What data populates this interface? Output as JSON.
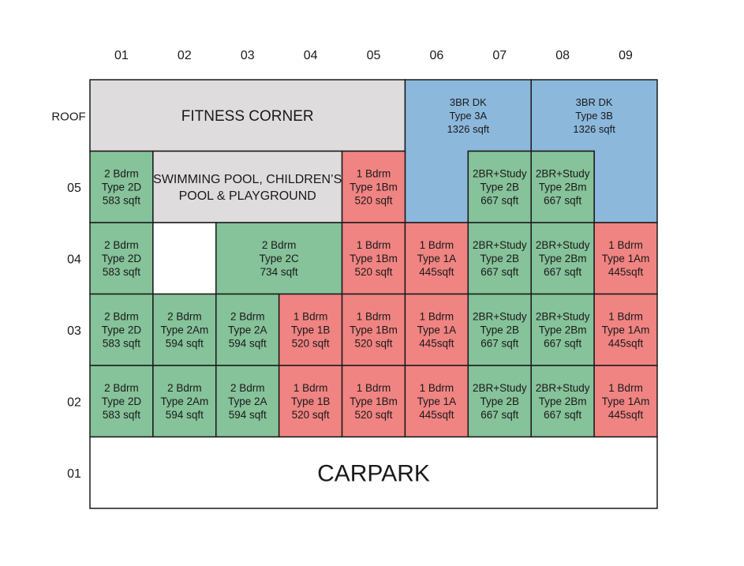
{
  "stacks": [
    "01",
    "02",
    "03",
    "04",
    "05",
    "06",
    "07",
    "08",
    "09"
  ],
  "floors": [
    "ROOF",
    "05",
    "04",
    "03",
    "02",
    "01"
  ],
  "colors": {
    "two_bedroom": "#86c29a",
    "one_bedroom": "#f08482",
    "three_bedroom": "#8cb8dc",
    "facility": "#dfdcdd",
    "empty": "#ffffff",
    "border": "#1a1a1a"
  },
  "cells": [
    {
      "kind": "facility",
      "size": "l",
      "parts": [
        {
          "floor": "ROOF",
          "stacks": [
            "01",
            "02",
            "03",
            "04",
            "05"
          ]
        }
      ],
      "lines": [
        "FITNESS CORNER"
      ]
    },
    {
      "kind": "three_bedroom",
      "parts": [
        {
          "floor": "ROOF",
          "stacks": [
            "06",
            "07"
          ]
        },
        {
          "floor": "05",
          "stacks": [
            "06"
          ]
        }
      ],
      "lines": [
        "3BR DK",
        "Type 3A",
        "1326 sqft"
      ]
    },
    {
      "kind": "three_bedroom",
      "parts": [
        {
          "floor": "ROOF",
          "stacks": [
            "08",
            "09"
          ]
        },
        {
          "floor": "05",
          "stacks": [
            "09"
          ]
        }
      ],
      "lines": [
        "3BR DK",
        "Type 3B",
        "1326 sqft"
      ]
    },
    {
      "kind": "two_bedroom",
      "parts": [
        {
          "floor": "05",
          "stacks": [
            "01"
          ]
        }
      ],
      "lines": [
        "2 Bdrm",
        "Type 2D",
        "583 sqft"
      ]
    },
    {
      "kind": "facility",
      "size": "m",
      "parts": [
        {
          "floor": "05",
          "stacks": [
            "02",
            "03",
            "04"
          ]
        }
      ],
      "lines": [
        "SWIMMING POOL, CHILDREN’S",
        "POOL & PLAYGROUND"
      ]
    },
    {
      "kind": "one_bedroom",
      "parts": [
        {
          "floor": "05",
          "stacks": [
            "05"
          ]
        }
      ],
      "lines": [
        "1 Bdrm",
        "Type 1Bm",
        "520 sqft"
      ]
    },
    {
      "kind": "two_bedroom",
      "parts": [
        {
          "floor": "05",
          "stacks": [
            "07"
          ]
        }
      ],
      "lines": [
        "2BR+Study",
        "Type 2B",
        "667 sqft"
      ]
    },
    {
      "kind": "two_bedroom",
      "parts": [
        {
          "floor": "05",
          "stacks": [
            "08"
          ]
        }
      ],
      "lines": [
        "2BR+Study",
        "Type 2Bm",
        "667 sqft"
      ]
    },
    {
      "kind": "two_bedroom",
      "parts": [
        {
          "floor": "04",
          "stacks": [
            "01"
          ]
        }
      ],
      "lines": [
        "2 Bdrm",
        "Type 2D",
        "583 sqft"
      ]
    },
    {
      "kind": "empty",
      "parts": [
        {
          "floor": "04",
          "stacks": [
            "02"
          ]
        }
      ],
      "lines": []
    },
    {
      "kind": "two_bedroom",
      "parts": [
        {
          "floor": "04",
          "stacks": [
            "03",
            "04"
          ]
        }
      ],
      "lines": [
        "2 Bdrm",
        "Type 2C",
        "734 sqft"
      ]
    },
    {
      "kind": "one_bedroom",
      "parts": [
        {
          "floor": "04",
          "stacks": [
            "05"
          ]
        }
      ],
      "lines": [
        "1 Bdrm",
        "Type 1Bm",
        "520 sqft"
      ]
    },
    {
      "kind": "one_bedroom",
      "parts": [
        {
          "floor": "04",
          "stacks": [
            "06"
          ]
        }
      ],
      "lines": [
        "1 Bdrm",
        "Type 1A",
        "445sqft"
      ]
    },
    {
      "kind": "two_bedroom",
      "parts": [
        {
          "floor": "04",
          "stacks": [
            "07"
          ]
        }
      ],
      "lines": [
        "2BR+Study",
        "Type 2B",
        "667 sqft"
      ]
    },
    {
      "kind": "two_bedroom",
      "parts": [
        {
          "floor": "04",
          "stacks": [
            "08"
          ]
        }
      ],
      "lines": [
        "2BR+Study",
        "Type 2Bm",
        "667 sqft"
      ]
    },
    {
      "kind": "one_bedroom",
      "parts": [
        {
          "floor": "04",
          "stacks": [
            "09"
          ]
        }
      ],
      "lines": [
        "1 Bdrm",
        "Type 1Am",
        "445sqft"
      ]
    },
    {
      "kind": "two_bedroom",
      "parts": [
        {
          "floor": "03",
          "stacks": [
            "01"
          ]
        }
      ],
      "lines": [
        "2 Bdrm",
        "Type 2D",
        "583 sqft"
      ]
    },
    {
      "kind": "two_bedroom",
      "parts": [
        {
          "floor": "03",
          "stacks": [
            "02"
          ]
        }
      ],
      "lines": [
        "2 Bdrm",
        "Type 2Am",
        "594 sqft"
      ]
    },
    {
      "kind": "two_bedroom",
      "parts": [
        {
          "floor": "03",
          "stacks": [
            "03"
          ]
        }
      ],
      "lines": [
        "2 Bdrm",
        "Type 2A",
        "594 sqft"
      ]
    },
    {
      "kind": "one_bedroom",
      "parts": [
        {
          "floor": "03",
          "stacks": [
            "04"
          ]
        }
      ],
      "lines": [
        "1 Bdrm",
        "Type 1B",
        "520 sqft"
      ]
    },
    {
      "kind": "one_bedroom",
      "parts": [
        {
          "floor": "03",
          "stacks": [
            "05"
          ]
        }
      ],
      "lines": [
        "1 Bdrm",
        "Type 1Bm",
        "520 sqft"
      ]
    },
    {
      "kind": "one_bedroom",
      "parts": [
        {
          "floor": "03",
          "stacks": [
            "06"
          ]
        }
      ],
      "lines": [
        "1 Bdrm",
        "Type 1A",
        "445sqft"
      ]
    },
    {
      "kind": "two_bedroom",
      "parts": [
        {
          "floor": "03",
          "stacks": [
            "07"
          ]
        }
      ],
      "lines": [
        "2BR+Study",
        "Type 2B",
        "667 sqft"
      ]
    },
    {
      "kind": "two_bedroom",
      "parts": [
        {
          "floor": "03",
          "stacks": [
            "08"
          ]
        }
      ],
      "lines": [
        "2BR+Study",
        "Type 2Bm",
        "667 sqft"
      ]
    },
    {
      "kind": "one_bedroom",
      "parts": [
        {
          "floor": "03",
          "stacks": [
            "09"
          ]
        }
      ],
      "lines": [
        "1 Bdrm",
        "Type 1Am",
        "445sqft"
      ]
    },
    {
      "kind": "two_bedroom",
      "parts": [
        {
          "floor": "02",
          "stacks": [
            "01"
          ]
        }
      ],
      "lines": [
        "2 Bdrm",
        "Type 2D",
        "583 sqft"
      ]
    },
    {
      "kind": "two_bedroom",
      "parts": [
        {
          "floor": "02",
          "stacks": [
            "02"
          ]
        }
      ],
      "lines": [
        "2 Bdrm",
        "Type 2Am",
        "594 sqft"
      ]
    },
    {
      "kind": "two_bedroom",
      "parts": [
        {
          "floor": "02",
          "stacks": [
            "03"
          ]
        }
      ],
      "lines": [
        "2 Bdrm",
        "Type 2A",
        "594 sqft"
      ]
    },
    {
      "kind": "one_bedroom",
      "parts": [
        {
          "floor": "02",
          "stacks": [
            "04"
          ]
        }
      ],
      "lines": [
        "1 Bdrm",
        "Type 1B",
        "520 sqft"
      ]
    },
    {
      "kind": "one_bedroom",
      "parts": [
        {
          "floor": "02",
          "stacks": [
            "05"
          ]
        }
      ],
      "lines": [
        "1 Bdrm",
        "Type 1Bm",
        "520 sqft"
      ]
    },
    {
      "kind": "one_bedroom",
      "parts": [
        {
          "floor": "02",
          "stacks": [
            "06"
          ]
        }
      ],
      "lines": [
        "1 Bdrm",
        "Type 1A",
        "445sqft"
      ]
    },
    {
      "kind": "two_bedroom",
      "parts": [
        {
          "floor": "02",
          "stacks": [
            "07"
          ]
        }
      ],
      "lines": [
        "2BR+Study",
        "Type 2B",
        "667 sqft"
      ]
    },
    {
      "kind": "two_bedroom",
      "parts": [
        {
          "floor": "02",
          "stacks": [
            "08"
          ]
        }
      ],
      "lines": [
        "2BR+Study",
        "Type 2Bm",
        "667 sqft"
      ]
    },
    {
      "kind": "one_bedroom",
      "parts": [
        {
          "floor": "02",
          "stacks": [
            "09"
          ]
        }
      ],
      "lines": [
        "1 Bdrm",
        "Type 1Am",
        "445sqft"
      ]
    },
    {
      "kind": "empty",
      "size": "xl",
      "parts": [
        {
          "floor": "01",
          "stacks": [
            "01",
            "02",
            "03",
            "04",
            "05",
            "06",
            "07",
            "08",
            "09"
          ]
        }
      ],
      "lines": [
        "CARPARK"
      ]
    }
  ]
}
